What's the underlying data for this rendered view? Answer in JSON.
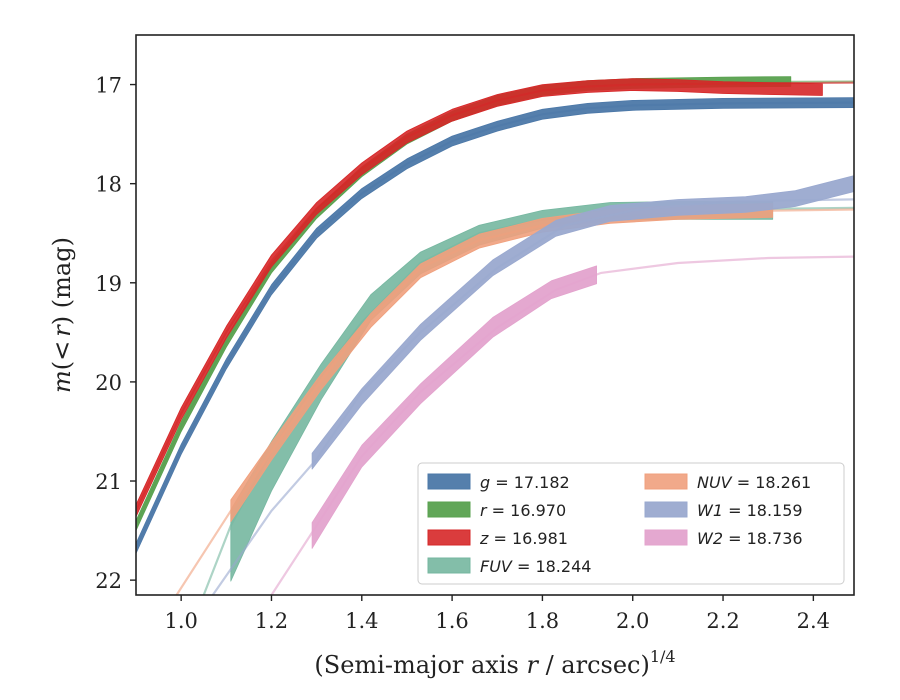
{
  "chart_data": {
    "type": "line",
    "title": "",
    "xlabel": "(Semi-major axis r / arcsec)^1/4",
    "xlabel_parts": {
      "prefix": "(Semi-major axis ",
      "var": "r",
      "mid": " / arcsec)",
      "sup": "1/4"
    },
    "ylabel": "m(<r) (mag)",
    "ylabel_parts": {
      "var": "m",
      "open": "(",
      "lt": "<",
      "r": "r",
      "close": ")",
      "unit": " (mag)"
    },
    "xlim": [
      0.9,
      2.49
    ],
    "ylim": [
      22.15,
      16.5
    ],
    "y_inverted": true,
    "x_ticks": [
      1.0,
      1.2,
      1.4,
      1.6,
      1.8,
      2.0,
      2.2,
      2.4
    ],
    "x_tick_labels": [
      "1.0",
      "1.2",
      "1.4",
      "1.6",
      "1.8",
      "2.0",
      "2.2",
      "2.4"
    ],
    "y_ticks": [
      17,
      18,
      19,
      20,
      21,
      22
    ],
    "y_tick_labels": [
      "17",
      "18",
      "19",
      "20",
      "21",
      "22"
    ],
    "grid": false,
    "legend": {
      "placement": "lower-right",
      "columns": 2
    },
    "series": [
      {
        "name": "g = 17.182",
        "label_var": "g",
        "label_value": "17.182",
        "color": "#4c78a8",
        "band_alpha": 0.95,
        "model": [
          [
            0.9,
            21.68
          ],
          [
            1.0,
            20.68
          ],
          [
            1.1,
            19.82
          ],
          [
            1.2,
            19.07
          ],
          [
            1.3,
            18.5
          ],
          [
            1.4,
            18.1
          ],
          [
            1.5,
            17.8
          ],
          [
            1.6,
            17.57
          ],
          [
            1.7,
            17.42
          ],
          [
            1.8,
            17.3
          ],
          [
            1.9,
            17.24
          ],
          [
            2.0,
            17.21
          ],
          [
            2.2,
            17.19
          ],
          [
            2.49,
            17.182
          ]
        ],
        "data": [
          [
            0.9,
            21.68,
            0.02
          ],
          [
            1.0,
            20.68,
            0.02
          ],
          [
            1.1,
            19.82,
            0.02
          ],
          [
            1.2,
            19.07,
            0.02
          ],
          [
            1.3,
            18.5,
            0.02
          ],
          [
            1.4,
            18.1,
            0.02
          ],
          [
            1.5,
            17.8,
            0.02
          ],
          [
            1.6,
            17.57,
            0.02
          ],
          [
            1.7,
            17.42,
            0.02
          ],
          [
            1.8,
            17.3,
            0.02
          ],
          [
            1.9,
            17.24,
            0.02
          ],
          [
            2.0,
            17.21,
            0.02
          ],
          [
            2.2,
            17.19,
            0.02
          ],
          [
            2.49,
            17.182,
            0.02
          ]
        ]
      },
      {
        "name": "r = 16.970",
        "label_var": "r",
        "label_value": "16.970",
        "color": "#59a14f",
        "band_alpha": 0.95,
        "model": [
          [
            0.9,
            21.45
          ],
          [
            1.0,
            20.45
          ],
          [
            1.1,
            19.6
          ],
          [
            1.2,
            18.85
          ],
          [
            1.3,
            18.3
          ],
          [
            1.4,
            17.88
          ],
          [
            1.5,
            17.55
          ],
          [
            1.6,
            17.32
          ],
          [
            1.7,
            17.16
          ],
          [
            1.8,
            17.06
          ],
          [
            1.9,
            17.01
          ],
          [
            2.0,
            16.99
          ],
          [
            2.2,
            16.975
          ],
          [
            2.49,
            16.97
          ]
        ],
        "data": [
          [
            0.9,
            21.45,
            0.02
          ],
          [
            1.0,
            20.45,
            0.02
          ],
          [
            1.1,
            19.6,
            0.02
          ],
          [
            1.2,
            18.85,
            0.02
          ],
          [
            1.3,
            18.3,
            0.02
          ],
          [
            1.4,
            17.88,
            0.02
          ],
          [
            1.5,
            17.55,
            0.02
          ],
          [
            1.6,
            17.32,
            0.02
          ],
          [
            1.7,
            17.16,
            0.02
          ],
          [
            1.8,
            17.06,
            0.02
          ],
          [
            1.9,
            17.01,
            0.02
          ],
          [
            2.0,
            16.99,
            0.02
          ],
          [
            2.2,
            16.975,
            0.02
          ],
          [
            2.35,
            16.97,
            0.02
          ]
        ]
      },
      {
        "name": "z = 16.981",
        "label_var": "z",
        "label_value": "16.981",
        "color": "#d62728",
        "band_alpha": 0.9,
        "model": [
          [
            0.9,
            21.3
          ],
          [
            1.0,
            20.32
          ],
          [
            1.1,
            19.5
          ],
          [
            1.2,
            18.78
          ],
          [
            1.3,
            18.25
          ],
          [
            1.4,
            17.85
          ],
          [
            1.5,
            17.53
          ],
          [
            1.6,
            17.31
          ],
          [
            1.7,
            17.16
          ],
          [
            1.8,
            17.06
          ],
          [
            1.9,
            17.02
          ],
          [
            2.0,
            17.0
          ],
          [
            2.2,
            16.99
          ],
          [
            2.49,
            16.981
          ]
        ],
        "data": [
          [
            0.9,
            21.3,
            0.03
          ],
          [
            1.0,
            20.32,
            0.03
          ],
          [
            1.1,
            19.5,
            0.03
          ],
          [
            1.2,
            18.78,
            0.03
          ],
          [
            1.3,
            18.25,
            0.03
          ],
          [
            1.4,
            17.85,
            0.03
          ],
          [
            1.5,
            17.53,
            0.03
          ],
          [
            1.6,
            17.31,
            0.03
          ],
          [
            1.7,
            17.16,
            0.03
          ],
          [
            1.8,
            17.06,
            0.03
          ],
          [
            1.9,
            17.02,
            0.03
          ],
          [
            2.0,
            17.0,
            0.03
          ],
          [
            2.1,
            17.01,
            0.03
          ],
          [
            2.2,
            17.03,
            0.03
          ],
          [
            2.3,
            17.04,
            0.03
          ],
          [
            2.42,
            17.05,
            0.03
          ]
        ]
      },
      {
        "name": "FUV = 18.244",
        "label_var": "FUV",
        "label_value": "18.244",
        "color": "#76b7a0",
        "band_alpha": 0.9,
        "model": [
          [
            1.05,
            22.15
          ],
          [
            1.11,
            21.45
          ],
          [
            1.2,
            20.7
          ],
          [
            1.3,
            20.0
          ],
          [
            1.4,
            19.4
          ],
          [
            1.53,
            18.8
          ],
          [
            1.66,
            18.5
          ],
          [
            1.8,
            18.36
          ],
          [
            2.0,
            18.29
          ],
          [
            2.2,
            18.26
          ],
          [
            2.49,
            18.244
          ]
        ],
        "data": [
          [
            1.11,
            21.65,
            0.33
          ],
          [
            1.2,
            20.85,
            0.22
          ],
          [
            1.31,
            20.0,
            0.15
          ],
          [
            1.42,
            19.25,
            0.1
          ],
          [
            1.53,
            18.8,
            0.08
          ],
          [
            1.66,
            18.52,
            0.07
          ],
          [
            1.8,
            18.36,
            0.06
          ],
          [
            1.95,
            18.28,
            0.06
          ],
          [
            2.1,
            18.27,
            0.06
          ],
          [
            2.31,
            18.27,
            0.06
          ]
        ]
      },
      {
        "name": "NUV = 18.261",
        "label_var": "NUV",
        "label_value": "18.261",
        "color": "#f0a07d",
        "band_alpha": 0.9,
        "model": [
          [
            0.99,
            22.15
          ],
          [
            1.11,
            21.3
          ],
          [
            1.2,
            20.7
          ],
          [
            1.3,
            20.05
          ],
          [
            1.4,
            19.45
          ],
          [
            1.53,
            18.85
          ],
          [
            1.66,
            18.57
          ],
          [
            1.8,
            18.42
          ],
          [
            2.0,
            18.32
          ],
          [
            2.2,
            18.28
          ],
          [
            2.49,
            18.261
          ]
        ],
        "data": [
          [
            1.11,
            21.3,
            0.08
          ],
          [
            1.2,
            20.7,
            0.06
          ],
          [
            1.31,
            20.0,
            0.05
          ],
          [
            1.42,
            19.38,
            0.04
          ],
          [
            1.53,
            18.88,
            0.04
          ],
          [
            1.66,
            18.58,
            0.04
          ],
          [
            1.8,
            18.42,
            0.04
          ],
          [
            1.95,
            18.33,
            0.04
          ],
          [
            2.1,
            18.29,
            0.04
          ],
          [
            2.31,
            18.27,
            0.04
          ]
        ]
      },
      {
        "name": "W1 = 18.159",
        "label_var": "W1",
        "label_value": "18.159",
        "color": "#9aa9cf",
        "band_alpha": 0.95,
        "model": [
          [
            1.07,
            22.15
          ],
          [
            1.2,
            21.3
          ],
          [
            1.3,
            20.78
          ],
          [
            1.4,
            20.1
          ],
          [
            1.53,
            19.5
          ],
          [
            1.7,
            18.85
          ],
          [
            1.85,
            18.42
          ],
          [
            2.0,
            18.27
          ],
          [
            2.2,
            18.18
          ],
          [
            2.49,
            18.159
          ]
        ],
        "data": [
          [
            1.29,
            20.8,
            0.05
          ],
          [
            1.4,
            20.15,
            0.05
          ],
          [
            1.53,
            19.5,
            0.05
          ],
          [
            1.69,
            18.85,
            0.05
          ],
          [
            1.83,
            18.45,
            0.05
          ],
          [
            1.95,
            18.3,
            0.05
          ],
          [
            2.1,
            18.24,
            0.05
          ],
          [
            2.25,
            18.21,
            0.05
          ],
          [
            2.36,
            18.15,
            0.05
          ],
          [
            2.49,
            18.0,
            0.05
          ]
        ]
      },
      {
        "name": "W2 = 18.736",
        "label_var": "W2",
        "label_value": "18.736",
        "color": "#e3a3cd",
        "band_alpha": 0.95,
        "model": [
          [
            1.2,
            22.15
          ],
          [
            1.3,
            21.45
          ],
          [
            1.4,
            20.75
          ],
          [
            1.53,
            20.1
          ],
          [
            1.7,
            19.45
          ],
          [
            1.83,
            19.07
          ],
          [
            1.93,
            18.9
          ],
          [
            2.1,
            18.8
          ],
          [
            2.3,
            18.75
          ],
          [
            2.49,
            18.736
          ]
        ],
        "data": [
          [
            1.29,
            21.55,
            0.1
          ],
          [
            1.4,
            20.75,
            0.08
          ],
          [
            1.53,
            20.12,
            0.07
          ],
          [
            1.69,
            19.45,
            0.07
          ],
          [
            1.82,
            19.07,
            0.06
          ],
          [
            1.92,
            18.92,
            0.06
          ]
        ]
      }
    ]
  }
}
